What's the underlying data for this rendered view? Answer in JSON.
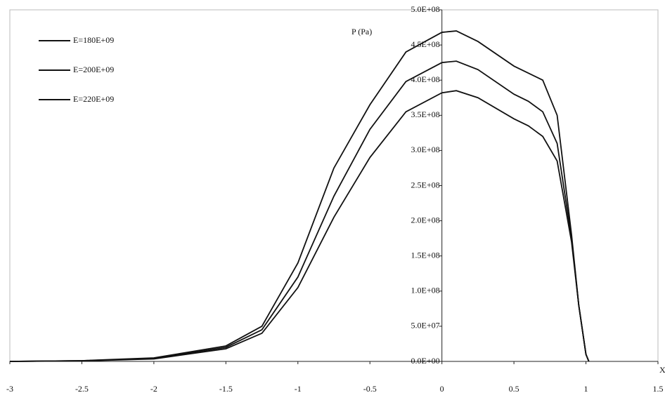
{
  "chart_data": {
    "type": "line",
    "x_label": "X",
    "y_label": "P (Pa)",
    "x": [
      -3,
      -2.5,
      -2,
      -1.5,
      -1.25,
      -1,
      -0.75,
      -0.5,
      -0.25,
      0,
      0.1,
      0.25,
      0.5,
      0.6,
      0.7,
      0.8,
      0.9,
      0.95,
      1,
      1.02
    ],
    "series": [
      {
        "name": "E=180E+09",
        "color": "#111111",
        "values": [
          0,
          800000,
          3500000,
          18000000,
          40000000,
          105000000,
          205000000,
          290000000,
          355000000,
          382000000,
          385000000,
          375000000,
          345000000,
          335000000,
          320000000,
          285000000,
          170000000,
          80000000,
          10000000,
          0
        ]
      },
      {
        "name": "E=200E+09",
        "color": "#111111",
        "values": [
          0,
          1000000,
          4000000,
          20000000,
          45000000,
          120000000,
          235000000,
          330000000,
          398000000,
          425000000,
          427000000,
          415000000,
          380000000,
          370000000,
          355000000,
          310000000,
          175000000,
          80000000,
          10000000,
          0
        ]
      },
      {
        "name": "E=220E+09",
        "color": "#111111",
        "values": [
          0,
          1000000,
          5000000,
          22000000,
          50000000,
          140000000,
          275000000,
          365000000,
          440000000,
          468000000,
          470000000,
          455000000,
          420000000,
          410000000,
          400000000,
          350000000,
          180000000,
          80000000,
          10000000,
          0
        ]
      }
    ],
    "xlim": [
      -3,
      1.5
    ],
    "xticks": [
      -3,
      -2.5,
      -2,
      -1.5,
      -1,
      -0.5,
      0,
      0.5,
      1,
      1.5
    ],
    "ylim": [
      0,
      500000000
    ],
    "yticks": [
      {
        "value": 0,
        "label": "0.0E+00"
      },
      {
        "value": 50000000,
        "label": "5.0E+07"
      },
      {
        "value": 100000000,
        "label": "1.0E+08"
      },
      {
        "value": 150000000,
        "label": "1.5E+08"
      },
      {
        "value": 200000000,
        "label": "2.0E+08"
      },
      {
        "value": 250000000,
        "label": "2.5E+08"
      },
      {
        "value": 300000000,
        "label": "3.0E+08"
      },
      {
        "value": 350000000,
        "label": "3.5E+08"
      },
      {
        "value": 400000000,
        "label": "4.0E+08"
      },
      {
        "value": 450000000,
        "label": "4.5E+08"
      },
      {
        "value": 500000000,
        "label": "5.0E+08"
      }
    ],
    "legend": "upper-left",
    "grid": false
  }
}
